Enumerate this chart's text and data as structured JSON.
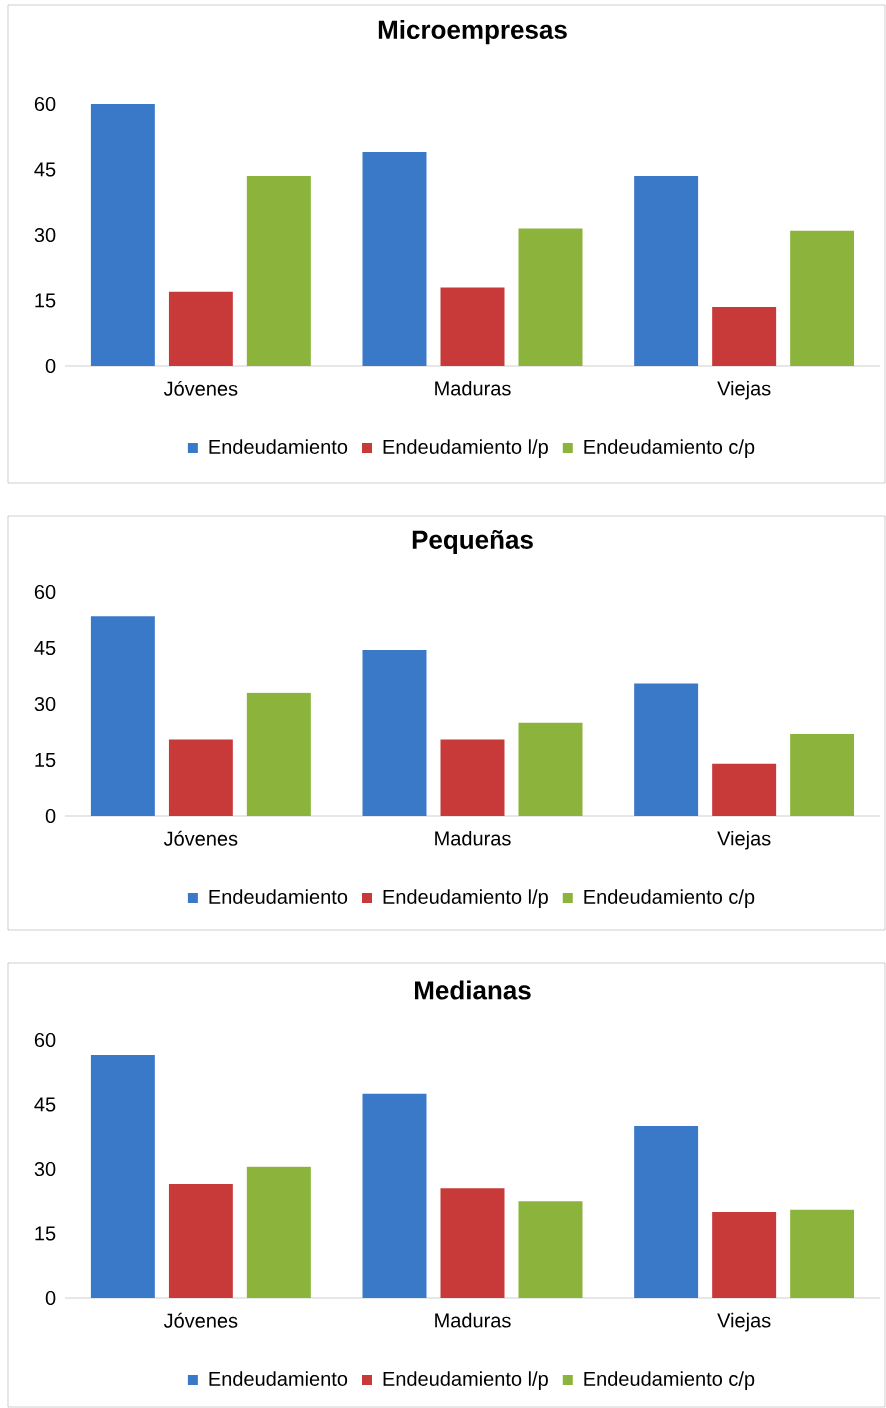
{
  "chart_data": [
    {
      "type": "bar",
      "title": "Microempresas",
      "categories": [
        "Jóvenes",
        "Maduras",
        "Viejas"
      ],
      "ylim": [
        0,
        60
      ],
      "yticks": [
        0,
        15,
        30,
        45,
        60
      ],
      "legend": "bottom",
      "series": [
        {
          "name": "Endeudamiento",
          "color": "#3a78c8",
          "values": [
            60,
            49,
            43.5
          ]
        },
        {
          "name": "Endeudamiento l/p",
          "color": "#c83a3a",
          "values": [
            17,
            18,
            13.5
          ]
        },
        {
          "name": "Endeudamiento c/p",
          "color": "#8cb43c",
          "values": [
            43.5,
            31.5,
            31
          ]
        }
      ]
    },
    {
      "type": "bar",
      "title": "Pequeñas",
      "categories": [
        "Jóvenes",
        "Maduras",
        "Viejas"
      ],
      "ylim": [
        0,
        60
      ],
      "yticks": [
        0,
        15,
        30,
        45,
        60
      ],
      "legend": "bottom",
      "series": [
        {
          "name": "Endeudamiento",
          "color": "#3a78c8",
          "values": [
            53.5,
            44.5,
            35.5
          ]
        },
        {
          "name": "Endeudamiento l/p",
          "color": "#c83a3a",
          "values": [
            20.5,
            20.5,
            14
          ]
        },
        {
          "name": "Endeudamiento c/p",
          "color": "#8cb43c",
          "values": [
            33,
            25,
            22
          ]
        }
      ]
    },
    {
      "type": "bar",
      "title": "Medianas",
      "categories": [
        "Jóvenes",
        "Maduras",
        "Viejas"
      ],
      "ylim": [
        0,
        60
      ],
      "yticks": [
        0,
        15,
        30,
        45,
        60
      ],
      "legend": "bottom",
      "series": [
        {
          "name": "Endeudamiento",
          "color": "#3a78c8",
          "values": [
            56.5,
            47.5,
            40
          ]
        },
        {
          "name": "Endeudamiento l/p",
          "color": "#c83a3a",
          "values": [
            26.5,
            25.5,
            20
          ]
        },
        {
          "name": "Endeudamiento c/p",
          "color": "#8cb43c",
          "values": [
            30.5,
            22.5,
            20.5
          ]
        }
      ]
    }
  ]
}
